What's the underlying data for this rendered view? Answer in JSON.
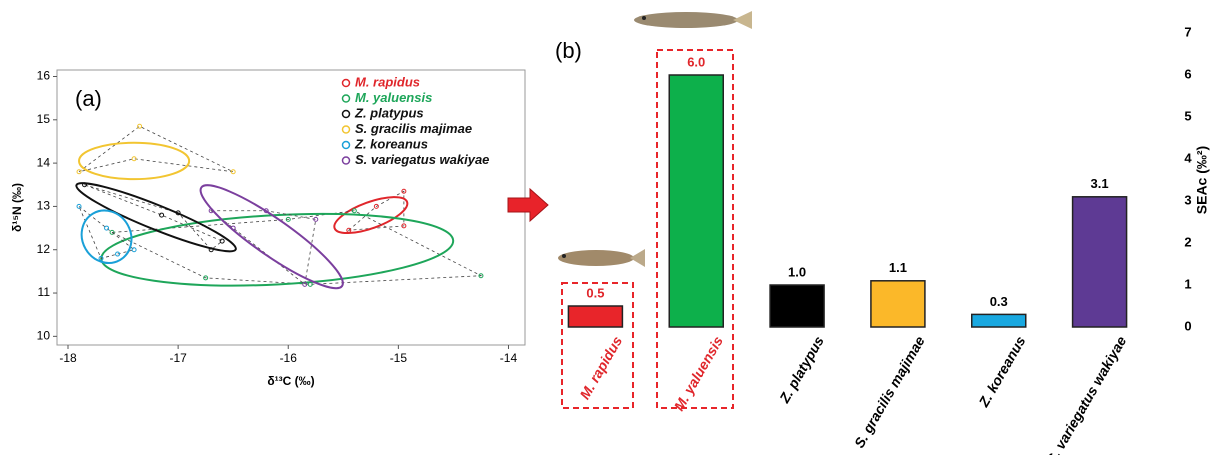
{
  "chart_data": [
    {
      "type": "scatter",
      "label": "(a)",
      "x_label": "δ¹³C (‰)",
      "y_label": "δ¹⁵N (‰)",
      "xlim": [
        -18.1,
        -13.85
      ],
      "ylim": [
        9.8,
        16.15
      ],
      "xticks": [
        -18,
        -17,
        -16,
        -15,
        -14
      ],
      "yticks": [
        10,
        11,
        12,
        13,
        14,
        15,
        16
      ],
      "series": [
        {
          "name": "M. rapidus",
          "color": "#e0262b",
          "text_color": "#e0262b",
          "x": [
            -15.45,
            -15.2,
            -14.95,
            -14.95
          ],
          "y": [
            12.45,
            13.0,
            13.35,
            12.55
          ],
          "ellipse": {
            "cx": -15.25,
            "cy": 12.8,
            "rx": 0.35,
            "ry": 0.3,
            "angle": -20
          }
        },
        {
          "name": "M. yaluensis",
          "color": "#1ea65a",
          "text_color": "#1ea65a",
          "x": [
            -17.6,
            -16.75,
            -15.8,
            -14.25,
            -15.4,
            -16.0
          ],
          "y": [
            12.4,
            11.35,
            11.2,
            11.4,
            12.9,
            12.7
          ],
          "ellipse": {
            "cx": -16.1,
            "cy": 12.0,
            "rx": 1.6,
            "ry": 0.8,
            "angle": -3
          }
        },
        {
          "name": "Z. platypus",
          "color": "#111111",
          "text_color": "#111111",
          "x": [
            -17.85,
            -17.0,
            -16.7,
            -16.6,
            -17.15
          ],
          "y": [
            13.5,
            12.85,
            12.0,
            12.2,
            12.8
          ],
          "ellipse": {
            "cx": -17.2,
            "cy": 12.75,
            "rx": 0.78,
            "ry": 0.28,
            "angle": 22
          }
        },
        {
          "name": "S. gracilis majimae",
          "color": "#f2c531",
          "text_color": "#111111",
          "x": [
            -17.9,
            -17.35,
            -16.5,
            -17.4
          ],
          "y": [
            13.8,
            14.85,
            13.8,
            14.1
          ],
          "ellipse": {
            "cx": -17.4,
            "cy": 14.05,
            "rx": 0.5,
            "ry": 0.42,
            "angle": 0
          }
        },
        {
          "name": "Z. koreanus",
          "color": "#1aa0d8",
          "text_color": "#111111",
          "x": [
            -17.9,
            -17.65,
            -17.4,
            -17.55,
            -17.7
          ],
          "y": [
            13.0,
            12.5,
            12.0,
            11.9,
            11.8
          ],
          "ellipse": {
            "cx": -17.65,
            "cy": 12.3,
            "rx": 0.22,
            "ry": 0.62,
            "angle": -30
          }
        },
        {
          "name": "S. variegatus wakiyae",
          "color": "#7b3f9e",
          "text_color": "#111111",
          "x": [
            -16.7,
            -16.2,
            -15.75,
            -15.85,
            -16.5
          ],
          "y": [
            12.9,
            12.9,
            12.7,
            11.2,
            12.5
          ],
          "ellipse": {
            "cx": -16.15,
            "cy": 12.3,
            "rx": 0.78,
            "ry": 0.42,
            "angle": 35
          }
        }
      ]
    },
    {
      "type": "bar",
      "label": "(b)",
      "y_label": "SEAc (‰²)",
      "categories": [
        "M. rapidus",
        "M. yaluensis",
        "Z. platypus",
        "S. gracilis majimae",
        "Z. koreanus",
        "S. variegatus wakiyae"
      ],
      "values": [
        0.5,
        6.0,
        1.0,
        1.1,
        0.3,
        3.1
      ],
      "value_labels": [
        "0.5",
        "6.0",
        "1.0",
        "1.1",
        "0.3",
        "3.1"
      ],
      "colors": [
        "#e8252a",
        "#0db04b",
        "#000000",
        "#fbb829",
        "#19a8e0",
        "#5e3a94"
      ],
      "label_colors": [
        "#e0262b",
        "#e0262b",
        "#000000",
        "#000000",
        "#000000",
        "#000000"
      ],
      "ylim": [
        0,
        7
      ],
      "yticks": [
        0,
        1,
        2,
        3,
        4,
        5,
        6,
        7
      ]
    }
  ]
}
